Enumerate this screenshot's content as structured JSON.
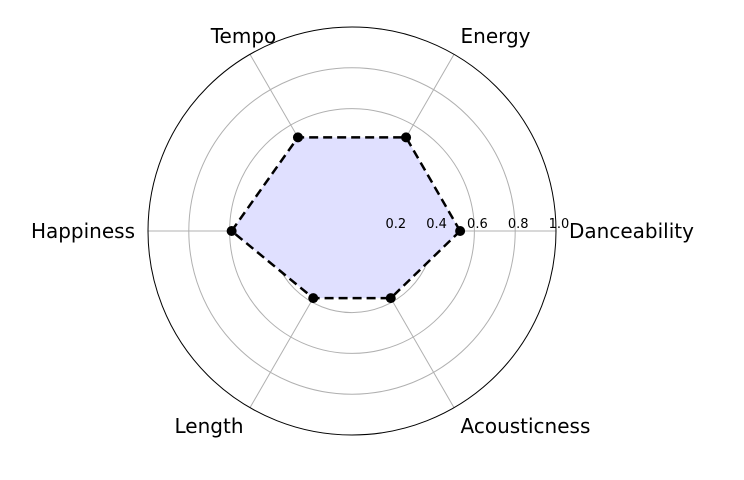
{
  "chart_data": {
    "type": "radar",
    "categories": [
      "Danceability",
      "Energy",
      "Tempo",
      "Happiness",
      "Length",
      "Acousticness"
    ],
    "values": [
      0.53,
      0.53,
      0.53,
      0.59,
      0.38,
      0.38
    ],
    "rlim": [
      0,
      1.0
    ],
    "rticks": [
      "0.2",
      "0.4",
      "0.6",
      "0.8",
      "1.0"
    ],
    "grid": true,
    "line_style": "dashed",
    "marker": "circle",
    "colors": {
      "line": "#000000",
      "fill": "#e0e0ff",
      "grid": "#b0b0b0",
      "outer": "#000000"
    }
  }
}
